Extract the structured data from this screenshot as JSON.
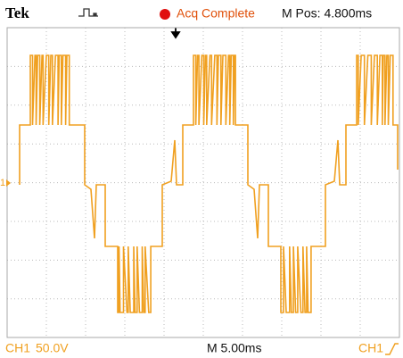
{
  "header": {
    "brand": "Tek",
    "status": "Acq Complete",
    "position": "M Pos: 4.800ms"
  },
  "marker": "1",
  "footer": {
    "channel": "CH1",
    "scale": "50.0V",
    "timebase": "M 5.00ms",
    "trigger_source": "CH1"
  }
}
